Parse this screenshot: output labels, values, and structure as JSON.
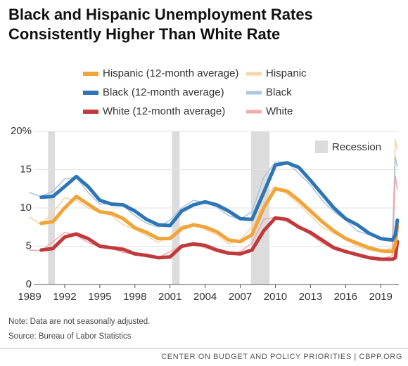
{
  "chart_data": {
    "type": "line",
    "title": [
      "Black and Hispanic Unemployment Rates",
      "Consistently Higher Than White Rate"
    ],
    "note": "Note: Data are not seasonally adjusted.",
    "source": "Source: Bureau of Labor Statistics",
    "footer": "CENTER ON BUDGET AND POLICY PRIORITIES | CBPP.ORG",
    "recession_label": "Recession",
    "recession_color": "#dcdcdc",
    "recessions": [
      [
        1990.58,
        1991.17
      ],
      [
        2001.17,
        2001.83
      ],
      [
        2007.92,
        2009.5
      ]
    ],
    "xlim": [
      1989,
      2020.55
    ],
    "xticks": [
      1989,
      1992,
      1995,
      1998,
      2001,
      2004,
      2007,
      2010,
      2013,
      2016,
      2019
    ],
    "ylim": [
      0,
      20
    ],
    "yticks": [
      0,
      5,
      10,
      15,
      {
        "value": 20,
        "label": "20%"
      }
    ],
    "grid": true,
    "x": [
      1989,
      1990,
      1991,
      1992,
      1993,
      1994,
      1995,
      1996,
      1997,
      1998,
      1999,
      2000,
      2001,
      2002,
      2003,
      2004,
      2005,
      2006,
      2007,
      2008,
      2009,
      2010,
      2011,
      2012,
      2013,
      2014,
      2015,
      2016,
      2017,
      2018,
      2019,
      2020,
      2020.25,
      2020.42
    ],
    "series": [
      {
        "name": "Hispanic (12-month average)",
        "color": "#f0a43a",
        "values": [
          null,
          8.0,
          8.2,
          10.0,
          11.5,
          10.5,
          9.5,
          9.3,
          8.6,
          7.4,
          6.8,
          6.0,
          6.0,
          7.3,
          7.8,
          7.5,
          6.9,
          5.8,
          5.6,
          6.5,
          10.0,
          12.5,
          12.2,
          11.0,
          9.6,
          8.2,
          7.0,
          6.0,
          5.4,
          4.8,
          4.4,
          4.3,
          5.2,
          7.7
        ]
      },
      {
        "name": "Hispanic",
        "color": "#f8d5a8",
        "values": [
          8.8,
          7.8,
          9.5,
          11.3,
          11.0,
          10.0,
          9.4,
          9.0,
          7.8,
          7.2,
          6.4,
          5.5,
          6.3,
          7.7,
          7.8,
          7.2,
          6.5,
          5.3,
          5.8,
          7.5,
          11.5,
          12.8,
          11.8,
          10.5,
          9.0,
          7.5,
          6.7,
          5.9,
          5.0,
          4.5,
          4.3,
          4.8,
          18.9,
          17.6
        ]
      },
      {
        "name": "Black (12-month average)",
        "color": "#2e75b6",
        "values": [
          null,
          11.4,
          11.5,
          12.8,
          14.1,
          12.8,
          11.0,
          10.5,
          10.4,
          9.6,
          8.5,
          7.8,
          7.7,
          9.6,
          10.4,
          10.8,
          10.4,
          9.6,
          8.6,
          8.5,
          12.0,
          15.6,
          15.9,
          15.3,
          13.6,
          11.8,
          10.0,
          8.6,
          7.8,
          6.7,
          6.0,
          5.8,
          6.5,
          8.4
        ]
      },
      {
        "name": "Black",
        "color": "#abc7e1",
        "values": [
          12.0,
          11.5,
          12.2,
          13.8,
          14.0,
          12.0,
          10.5,
          10.6,
          10.3,
          9.0,
          8.0,
          7.5,
          8.4,
          10.0,
          11.0,
          10.7,
          10.1,
          9.0,
          8.5,
          9.5,
          14.0,
          16.0,
          16.0,
          14.5,
          13.0,
          11.0,
          9.5,
          8.4,
          7.0,
          6.5,
          6.0,
          6.0,
          16.7,
          15.4
        ]
      },
      {
        "name": "White (12-month average)",
        "color": "#c0393b",
        "values": [
          null,
          4.5,
          4.7,
          6.2,
          6.6,
          6.0,
          5.0,
          4.8,
          4.6,
          4.0,
          3.8,
          3.5,
          3.6,
          5.0,
          5.3,
          5.1,
          4.5,
          4.1,
          4.0,
          4.5,
          7.0,
          8.7,
          8.5,
          7.5,
          6.8,
          5.8,
          4.8,
          4.3,
          3.9,
          3.5,
          3.3,
          3.3,
          3.5,
          5.6
        ]
      },
      {
        "name": "White",
        "color": "#f2aaad",
        "values": [
          4.5,
          4.4,
          5.6,
          6.8,
          6.4,
          5.5,
          4.9,
          4.7,
          4.2,
          3.9,
          3.6,
          3.5,
          4.3,
          5.2,
          5.3,
          4.8,
          4.3,
          3.9,
          4.3,
          5.4,
          8.5,
          8.8,
          8.2,
          7.4,
          6.5,
          5.4,
          4.6,
          4.2,
          3.7,
          3.4,
          3.2,
          3.8,
          14.2,
          12.4
        ]
      }
    ]
  }
}
